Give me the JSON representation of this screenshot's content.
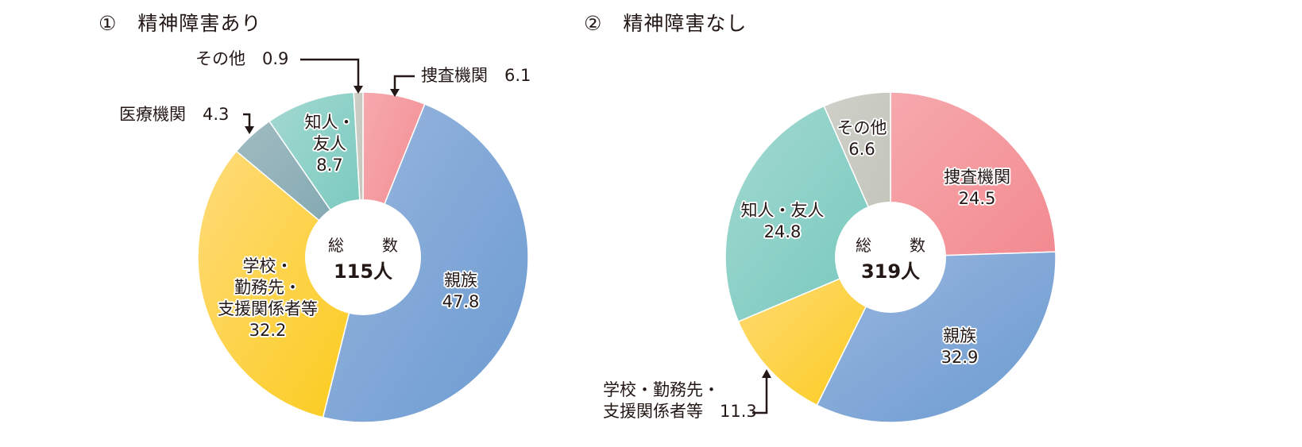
{
  "chart_data": [
    {
      "type": "pie",
      "title": "① 精神障害あり",
      "center_label": "総　数",
      "total": "115人",
      "unit": "%",
      "categories": [
        "捜査機関",
        "親族",
        "学校・勤務先・支援関係者等",
        "医療機関",
        "知人・友人",
        "その他"
      ],
      "values": [
        6.1,
        47.8,
        32.2,
        4.3,
        8.7,
        0.9
      ],
      "colors": [
        "#f28a90",
        "#6b9bd1",
        "#fccb1a",
        "#7aa3ad",
        "#74c7bc",
        "#c2c3b9"
      ]
    },
    {
      "type": "pie",
      "title": "② 精神障害なし",
      "center_label": "総　数",
      "total": "319人",
      "unit": "%",
      "categories": [
        "捜査機関",
        "親族",
        "学校・勤務先・支援関係者等",
        "知人・友人",
        "その他"
      ],
      "values": [
        24.5,
        32.9,
        11.3,
        24.8,
        6.6
      ],
      "colors": [
        "#f28a90",
        "#6b9bd1",
        "#fccb1a",
        "#74c7bc",
        "#c2c3b9"
      ]
    }
  ],
  "chart1": {
    "num": "①",
    "title": "精神障害あり",
    "center_top": "総　数",
    "center_total": "115人",
    "labels": {
      "sousa": "捜査機関　6.1",
      "sonota": "その他　0.9",
      "iryou": "医療機関　4.3",
      "chijin_1": "知人・",
      "chijin_2": "友人",
      "chijin_val": "8.7",
      "shinzoku": "親族",
      "shinzoku_val": "47.8",
      "gakkou_1": "学校・",
      "gakkou_2": "勤務先・",
      "gakkou_3": "支援関係者等",
      "gakkou_val": "32.2"
    }
  },
  "chart2": {
    "num": "②",
    "title": "精神障害なし",
    "center_top": "総　数",
    "center_total": "319人",
    "labels": {
      "sonota": "その他",
      "sonota_val": "6.6",
      "sousa": "捜査機関",
      "sousa_val": "24.5",
      "chijin": "知人・友人",
      "chijin_val": "24.8",
      "shinzoku": "親族",
      "shinzoku_val": "32.9",
      "gakkou_1": "学校・勤務先・",
      "gakkou_2": "支援関係者等　11.3"
    }
  }
}
